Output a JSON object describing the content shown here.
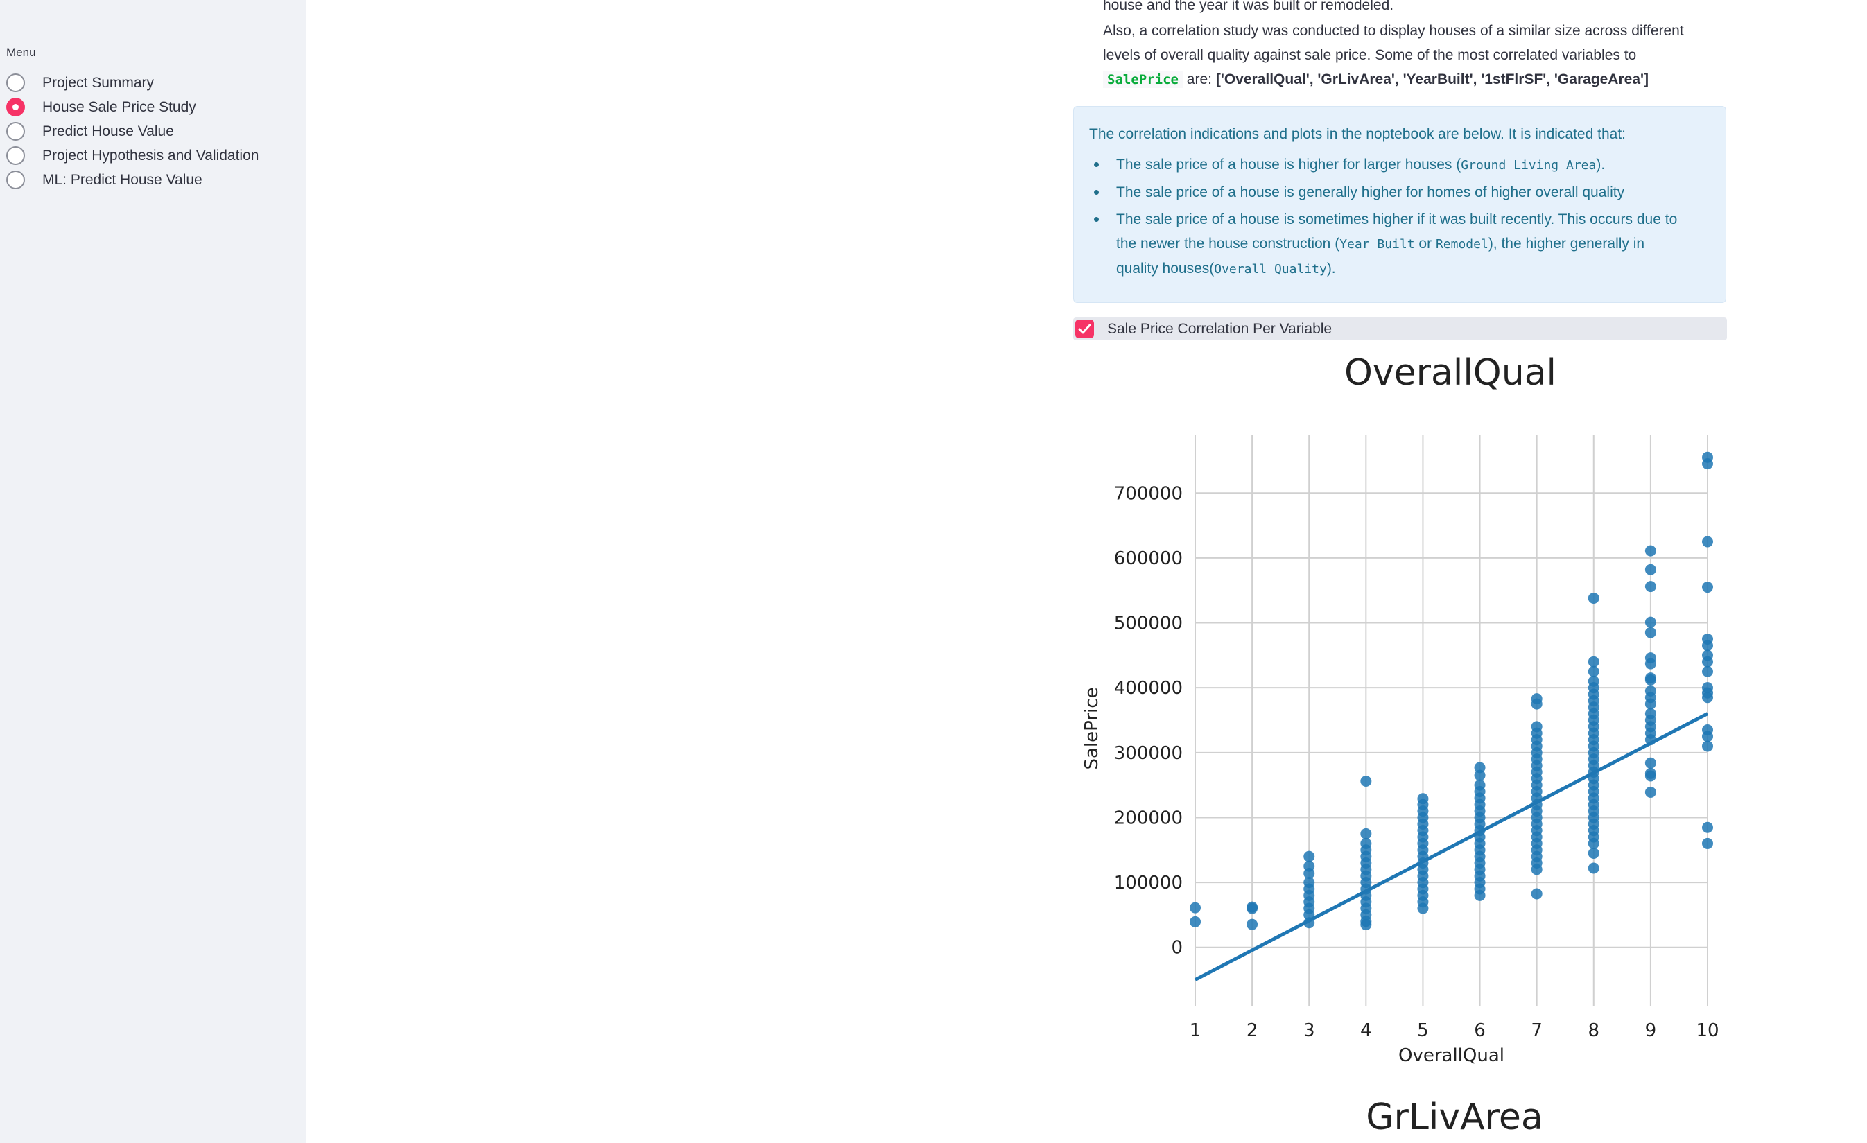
{
  "sidebar": {
    "menu_label": "Menu",
    "items": [
      {
        "label": "Project Summary",
        "selected": false
      },
      {
        "label": "House Sale Price Study",
        "selected": true
      },
      {
        "label": "Predict House Value",
        "selected": false
      },
      {
        "label": "Project Hypothesis and Validation",
        "selected": false
      },
      {
        "label": "ML: Predict House Value",
        "selected": false
      }
    ]
  },
  "main": {
    "top_bullet_partial": "house and the year it was built or remodeled.",
    "bullet_prefix_line1": "Also, a correlation study was conducted to display houses of a similar size across different",
    "bullet_prefix_line2": "levels of overall quality against sale price. Some of the most correlated variables to",
    "bullet_code": "SalePrice",
    "bullet_are": "are:",
    "bullet_vars": "['OverallQual', 'GrLivArea', 'YearBuilt', '1stFlrSF', 'GarageArea']",
    "info": {
      "intro": "The correlation indications and plots in the noptebook are below. It is indicated that:",
      "item1_pre": "The sale price of a house is higher for larger houses (",
      "item1_code": "Ground Living Area",
      "item1_post": ").",
      "item2": "The sale price of a house is generally higher for homes of higher overall quality",
      "item3_line1": "The sale price of a house is sometimes higher if it was built recently. This occurs due to",
      "item3_pre": "the newer the house construction (",
      "item3_code1": "Year Built",
      "item3_or": "or",
      "item3_code2": "Remodel",
      "item3_post": "), the higher generally in",
      "item3_line3_pre": "quality houses(",
      "item3_code3": "Overall Quality",
      "item3_line3_post": ")."
    },
    "checkbox": {
      "label": "Sale Price Correlation Per Variable",
      "checked": true
    },
    "next_chart_title": "GrLivArea"
  },
  "colors": {
    "accent": "#f63366",
    "point": "#1f77b4",
    "info_text": "#1f6f8b",
    "info_bg": "#e6f1fb"
  },
  "chart_data": {
    "type": "scatter",
    "title": "OverallQual",
    "xlabel": "OverallQual",
    "ylabel": "SalePrice",
    "xlim": [
      1,
      10
    ],
    "ylim": [
      -90000,
      790000
    ],
    "xticks": [
      1,
      2,
      3,
      4,
      5,
      6,
      7,
      8,
      9,
      10
    ],
    "yticks": [
      0,
      100000,
      200000,
      300000,
      400000,
      500000,
      600000,
      700000
    ],
    "grid": true,
    "regression_line": {
      "x": [
        1,
        10
      ],
      "y": [
        -50000,
        360000
      ]
    },
    "points": [
      [
        1,
        61000
      ],
      [
        1,
        39300
      ],
      [
        2,
        60000
      ],
      [
        2,
        35311
      ],
      [
        2,
        62000
      ],
      [
        3,
        140000
      ],
      [
        3,
        37900
      ],
      [
        3,
        125000
      ],
      [
        3,
        114000
      ],
      [
        3,
        100000
      ],
      [
        3,
        90000
      ],
      [
        3,
        80000
      ],
      [
        3,
        70000
      ],
      [
        3,
        60000
      ],
      [
        3,
        50000
      ],
      [
        4,
        256000
      ],
      [
        4,
        175000
      ],
      [
        4,
        160000
      ],
      [
        4,
        150000
      ],
      [
        4,
        140000
      ],
      [
        4,
        130000
      ],
      [
        4,
        120000
      ],
      [
        4,
        110000
      ],
      [
        4,
        100000
      ],
      [
        4,
        90000
      ],
      [
        4,
        80000
      ],
      [
        4,
        70000
      ],
      [
        4,
        60000
      ],
      [
        4,
        50000
      ],
      [
        4,
        40000
      ],
      [
        4,
        34900
      ],
      [
        5,
        229000
      ],
      [
        5,
        220000
      ],
      [
        5,
        210000
      ],
      [
        5,
        200000
      ],
      [
        5,
        190000
      ],
      [
        5,
        180000
      ],
      [
        5,
        170000
      ],
      [
        5,
        160000
      ],
      [
        5,
        150000
      ],
      [
        5,
        140000
      ],
      [
        5,
        130000
      ],
      [
        5,
        120000
      ],
      [
        5,
        110000
      ],
      [
        5,
        100000
      ],
      [
        5,
        90000
      ],
      [
        5,
        80000
      ],
      [
        5,
        70000
      ],
      [
        5,
        60000
      ],
      [
        6,
        277000
      ],
      [
        6,
        265000
      ],
      [
        6,
        250000
      ],
      [
        6,
        240000
      ],
      [
        6,
        230000
      ],
      [
        6,
        220000
      ],
      [
        6,
        210000
      ],
      [
        6,
        200000
      ],
      [
        6,
        190000
      ],
      [
        6,
        180000
      ],
      [
        6,
        170000
      ],
      [
        6,
        160000
      ],
      [
        6,
        150000
      ],
      [
        6,
        140000
      ],
      [
        6,
        130000
      ],
      [
        6,
        120000
      ],
      [
        6,
        110000
      ],
      [
        6,
        100000
      ],
      [
        6,
        90000
      ],
      [
        6,
        80000
      ],
      [
        7,
        383000
      ],
      [
        7,
        375000
      ],
      [
        7,
        340000
      ],
      [
        7,
        330000
      ],
      [
        7,
        320000
      ],
      [
        7,
        310000
      ],
      [
        7,
        300000
      ],
      [
        7,
        290000
      ],
      [
        7,
        280000
      ],
      [
        7,
        270000
      ],
      [
        7,
        260000
      ],
      [
        7,
        250000
      ],
      [
        7,
        240000
      ],
      [
        7,
        230000
      ],
      [
        7,
        220000
      ],
      [
        7,
        210000
      ],
      [
        7,
        200000
      ],
      [
        7,
        190000
      ],
      [
        7,
        180000
      ],
      [
        7,
        170000
      ],
      [
        7,
        160000
      ],
      [
        7,
        150000
      ],
      [
        7,
        140000
      ],
      [
        7,
        130000
      ],
      [
        7,
        120000
      ],
      [
        7,
        82500
      ],
      [
        8,
        538000
      ],
      [
        8,
        440000
      ],
      [
        8,
        425000
      ],
      [
        8,
        410000
      ],
      [
        8,
        400000
      ],
      [
        8,
        390000
      ],
      [
        8,
        380000
      ],
      [
        8,
        370000
      ],
      [
        8,
        360000
      ],
      [
        8,
        350000
      ],
      [
        8,
        340000
      ],
      [
        8,
        330000
      ],
      [
        8,
        320000
      ],
      [
        8,
        310000
      ],
      [
        8,
        300000
      ],
      [
        8,
        290000
      ],
      [
        8,
        280000
      ],
      [
        8,
        270000
      ],
      [
        8,
        260000
      ],
      [
        8,
        250000
      ],
      [
        8,
        240000
      ],
      [
        8,
        230000
      ],
      [
        8,
        220000
      ],
      [
        8,
        210000
      ],
      [
        8,
        200000
      ],
      [
        8,
        190000
      ],
      [
        8,
        180000
      ],
      [
        8,
        170000
      ],
      [
        8,
        160000
      ],
      [
        8,
        145000
      ],
      [
        8,
        122000
      ],
      [
        9,
        611000
      ],
      [
        9,
        582000
      ],
      [
        9,
        556000
      ],
      [
        9,
        501000
      ],
      [
        9,
        485000
      ],
      [
        9,
        446000
      ],
      [
        9,
        437000
      ],
      [
        9,
        415000
      ],
      [
        9,
        412000
      ],
      [
        9,
        395000
      ],
      [
        9,
        385000
      ],
      [
        9,
        375000
      ],
      [
        9,
        360000
      ],
      [
        9,
        350000
      ],
      [
        9,
        340000
      ],
      [
        9,
        330000
      ],
      [
        9,
        320000
      ],
      [
        9,
        284000
      ],
      [
        9,
        268000
      ],
      [
        9,
        264000
      ],
      [
        9,
        239000
      ],
      [
        10,
        755000
      ],
      [
        10,
        745000
      ],
      [
        10,
        625000
      ],
      [
        10,
        555000
      ],
      [
        10,
        475000
      ],
      [
        10,
        465000
      ],
      [
        10,
        450000
      ],
      [
        10,
        440000
      ],
      [
        10,
        425000
      ],
      [
        10,
        400000
      ],
      [
        10,
        392000
      ],
      [
        10,
        385000
      ],
      [
        10,
        335000
      ],
      [
        10,
        325000
      ],
      [
        10,
        310000
      ],
      [
        10,
        184750
      ],
      [
        10,
        160000
      ]
    ]
  }
}
